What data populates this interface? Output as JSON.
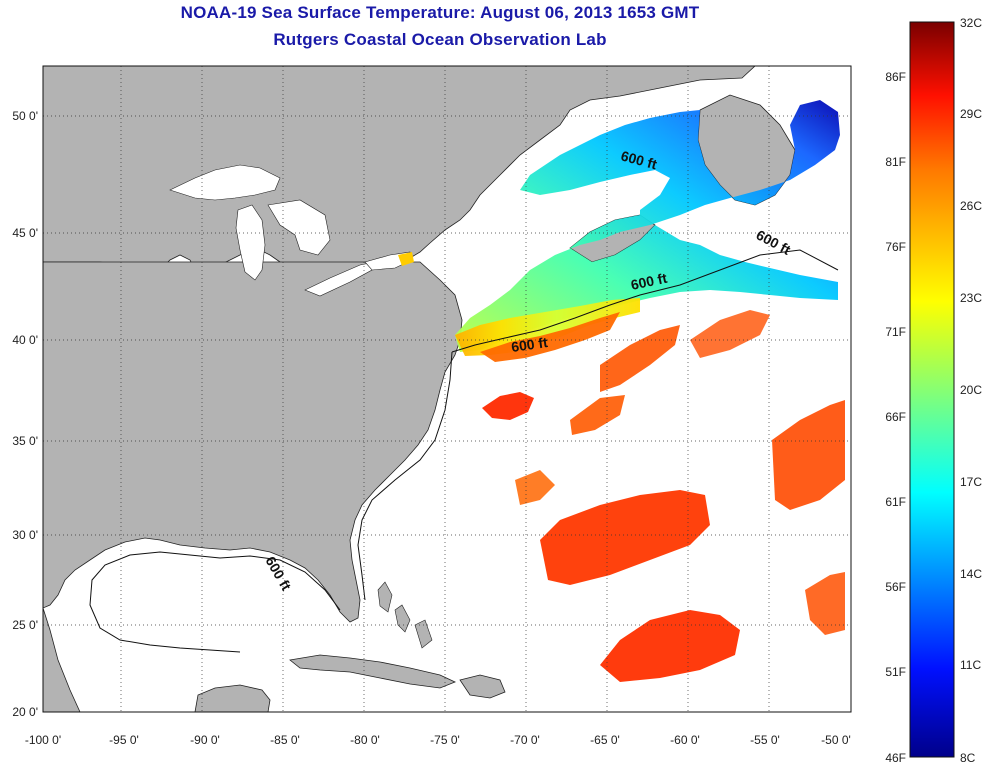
{
  "header": {
    "title": "NOAA-19 Sea Surface Temperature:  August 06, 2013 1653 GMT",
    "subtitle": "Rutgers Coastal Ocean Observation Lab"
  },
  "axes": {
    "x_ticks": [
      "-100 0'",
      "-95 0'",
      "-90 0'",
      "-85 0'",
      "-80 0'",
      "-75 0'",
      "-70 0'",
      "-65 0'",
      "-60 0'",
      "-55 0'",
      "-50 0'"
    ],
    "y_ticks": [
      "50 0'",
      "45 0'",
      "40 0'",
      "35 0'",
      "30 0'",
      "25 0'",
      "20 0'"
    ]
  },
  "contour_label": "600 ft",
  "colorbar": {
    "celsius_labels": [
      "32C",
      "29C",
      "26C",
      "23C",
      "20C",
      "17C",
      "14C",
      "11C",
      "8C"
    ],
    "fahrenheit_labels": [
      "86F",
      "81F",
      "76F",
      "71F",
      "66F",
      "61F",
      "56F",
      "51F",
      "46F"
    ]
  },
  "colors": {
    "land": "#b3b3b3",
    "water_no_data": "#ffffff",
    "title": "#1a1aa8",
    "grid": "#333333"
  }
}
